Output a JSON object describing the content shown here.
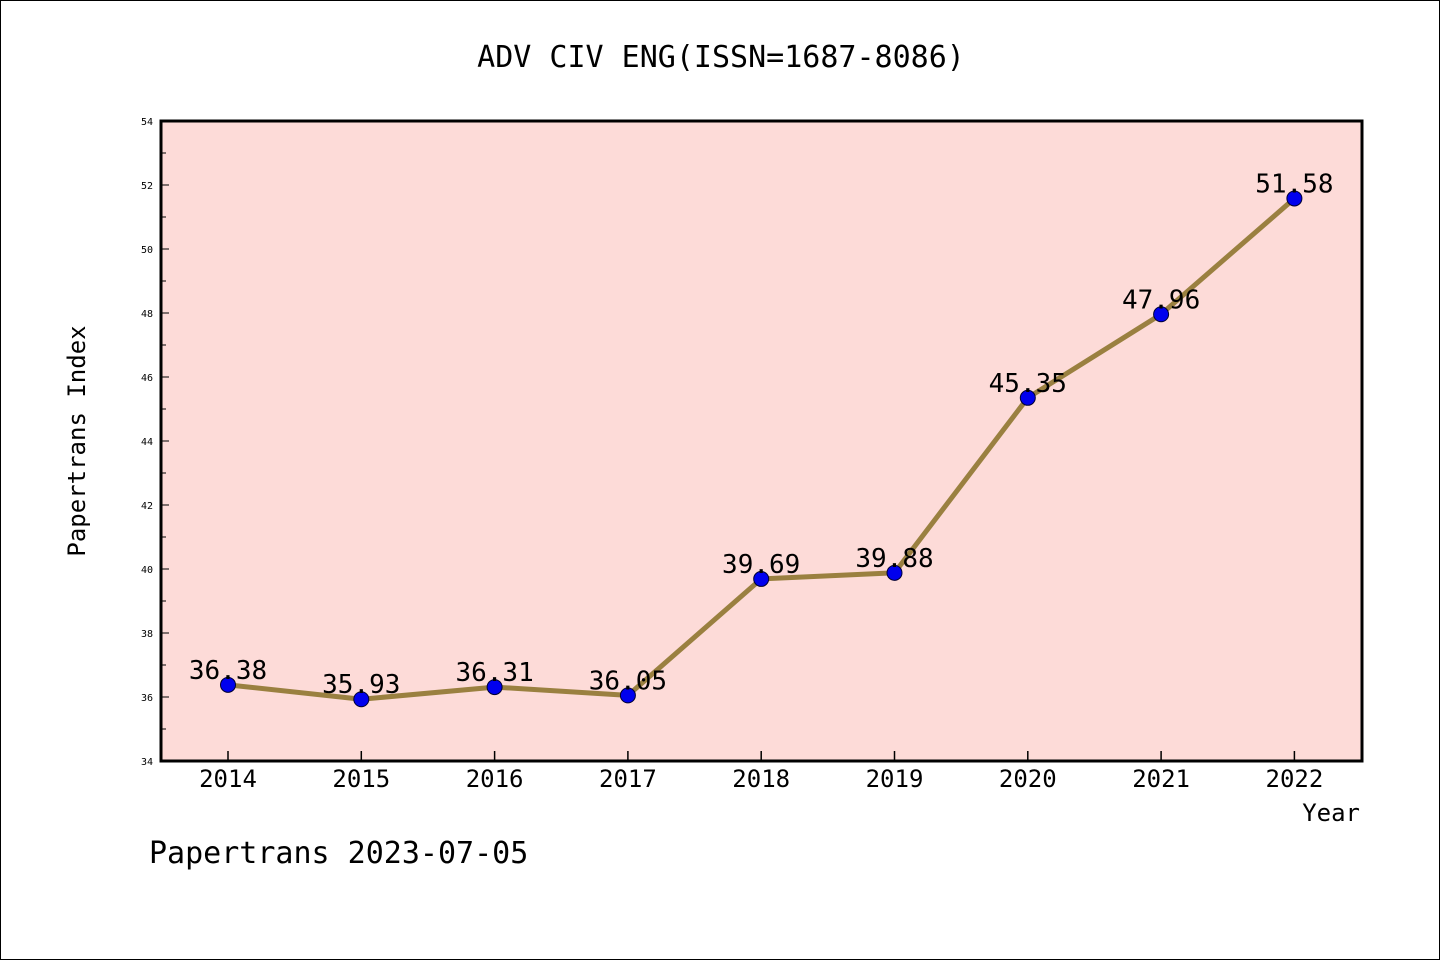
{
  "chart_data": {
    "type": "line",
    "title": "ADV CIV ENG(ISSN=1687-8086)",
    "xlabel": "Year",
    "ylabel": "Papertrans Index",
    "categories": [
      "2014",
      "2015",
      "2016",
      "2017",
      "2018",
      "2019",
      "2020",
      "2021",
      "2022"
    ],
    "values": [
      36.38,
      35.93,
      36.31,
      36.05,
      39.69,
      39.88,
      45.35,
      47.96,
      51.58
    ],
    "data_labels": [
      "36.38",
      "35.93",
      "36.31",
      "36.05",
      "39.69",
      "39.88",
      "45.35",
      "47.96",
      "51.58"
    ],
    "ylim": [
      34,
      54
    ],
    "yticks": [
      "34",
      "36",
      "38",
      "40",
      "42",
      "44",
      "46",
      "48",
      "50",
      "52",
      "54"
    ],
    "grid": false,
    "colors": {
      "plot_background": "#fddbd8",
      "line": "#9a8040",
      "marker": "#0000ee"
    }
  },
  "footer": "Papertrans 2023-07-05"
}
